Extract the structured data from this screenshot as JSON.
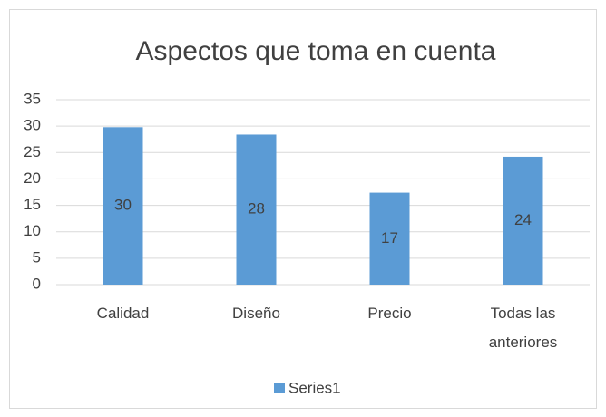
{
  "chart_data": {
    "type": "bar",
    "title": "Aspectos que toma en cuenta",
    "categories": [
      "Calidad",
      "Diseño",
      "Precio",
      "Todas las anteriores"
    ],
    "series": [
      {
        "name": "Series1",
        "color": "#5b9bd5",
        "values": [
          29.8,
          28.4,
          17.4,
          24.2
        ],
        "value_labels": [
          "30",
          "28",
          "17",
          "24"
        ]
      }
    ],
    "ylim": [
      0,
      35
    ],
    "yticks": [
      0,
      5,
      10,
      15,
      20,
      25,
      30,
      35
    ],
    "grid": true,
    "legend": "bottom"
  }
}
